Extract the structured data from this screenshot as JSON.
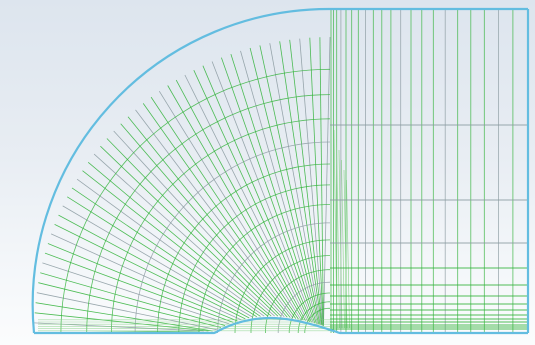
{
  "diagram": {
    "type": "structured-mesh",
    "description_visible_text": "",
    "colors": {
      "background_top": "#dde5ee",
      "background_bottom": "#fbfcfd",
      "boundary": "#63bde0",
      "mesh_line": "#32b33a",
      "mesh_line_light": "#7fd07f",
      "mesh_line_gray": "#8a9aa0"
    },
    "regions": [
      "quarter-circle-domain",
      "rectangular-downstream-domain"
    ],
    "body_shape": "bump-on-wall"
  }
}
